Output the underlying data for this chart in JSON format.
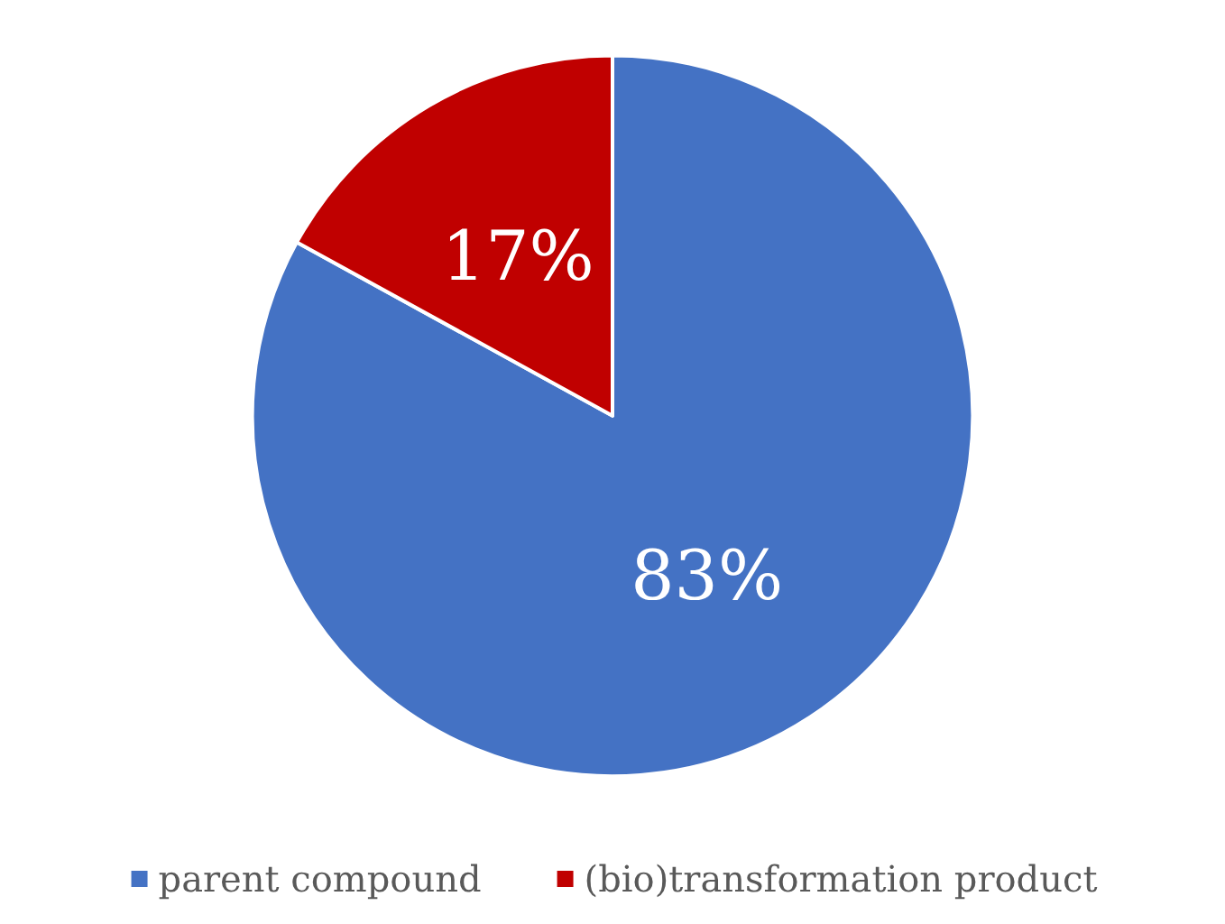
{
  "chart_data": {
    "type": "pie",
    "categories": [
      "parent compound",
      "(bio)transformation product"
    ],
    "values": [
      83,
      17
    ],
    "colors": [
      "#4472c4",
      "#c00000"
    ],
    "value_labels": [
      "83%",
      "17%"
    ],
    "legend": "bottom"
  }
}
